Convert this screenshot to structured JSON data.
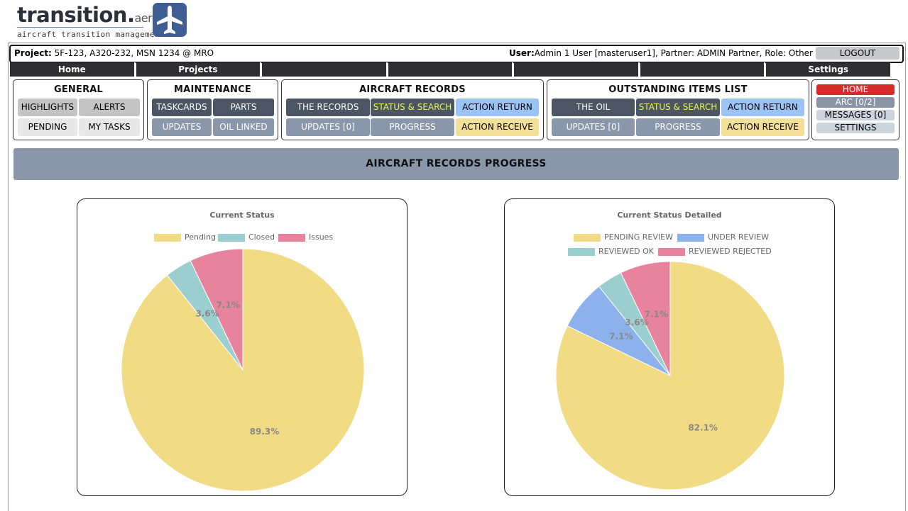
{
  "logo": {
    "word": "transition.",
    "aero": "aero",
    "sub": "aircraft transition management"
  },
  "project": {
    "label": "Project:",
    "value": " 5F-123, A320-232, MSN 1234 @ MRO",
    "user_label": "User:",
    "user_value": "Admin 1 User [masteruser1], Partner: ADMIN Partner, Role: Other",
    "logout": "LOGOUT"
  },
  "nav": [
    "Home",
    "Projects",
    "",
    "",
    "",
    "",
    "Settings"
  ],
  "panels": {
    "general": {
      "title": "GENERAL",
      "highlights": "HIGHLIGHTS",
      "alerts": "ALERTS",
      "pending": "PENDING",
      "my_tasks": "MY TASKS"
    },
    "maintenance": {
      "title": "MAINTENANCE",
      "taskcards": "TASKCARDS",
      "parts": "PARTS",
      "updates": "UPDATES",
      "oil_linked": "OIL LINKED"
    },
    "records": {
      "title": "AIRCRAFT RECORDS",
      "the_records": "THE RECORDS",
      "status_search": "STATUS & SEARCH",
      "action_return": "ACTION RETURN",
      "updates": "UPDATES [0]",
      "progress": "PROGRESS",
      "action_receive": "ACTION RECEIVE"
    },
    "oil": {
      "title": "OUTSTANDING ITEMS LIST",
      "the_oil": "THE OIL",
      "status_search": "STATUS & SEARCH",
      "action_return": "ACTION RETURN",
      "updates": "UPDATES [0]",
      "progress": "PROGRESS",
      "action_receive": "ACTION RECEIVE"
    },
    "side": {
      "home": "HOME",
      "arc": "ARC [0/2]",
      "messages": "MESSAGES [0]",
      "settings": "SETTINGS"
    }
  },
  "page_title": "AIRCRAFT RECORDS PROGRESS",
  "colors": {
    "yellow": "#f2db85",
    "teal": "#9bcfcf",
    "pink": "#e8839e",
    "blue": "#8cb1ec"
  },
  "chart_data": [
    {
      "type": "pie",
      "title": "Current Status",
      "legend_placement": "top",
      "slices": [
        {
          "label": "Pending",
          "value": 89.3,
          "display": "89.3%",
          "color": "#f2db85"
        },
        {
          "label": "Closed",
          "value": 3.6,
          "display": "3.6%",
          "color": "#9bcfcf"
        },
        {
          "label": "Issues",
          "value": 7.1,
          "display": "7.1%",
          "color": "#e8839e"
        }
      ]
    },
    {
      "type": "pie",
      "title": "Current Status Detailed",
      "legend_placement": "top",
      "slices": [
        {
          "label": "PENDING REVIEW",
          "value": 82.1,
          "display": "82.1%",
          "color": "#f2db85"
        },
        {
          "label": "UNDER REVIEW",
          "value": 7.1,
          "display": "7.1%",
          "color": "#8cb1ec"
        },
        {
          "label": "REVIEWED OK",
          "value": 3.6,
          "display": "3.6%",
          "color": "#9bcfcf"
        },
        {
          "label": "REVIEWED REJECTED",
          "value": 7.1,
          "display": "7.1%",
          "color": "#e8839e"
        }
      ]
    }
  ]
}
